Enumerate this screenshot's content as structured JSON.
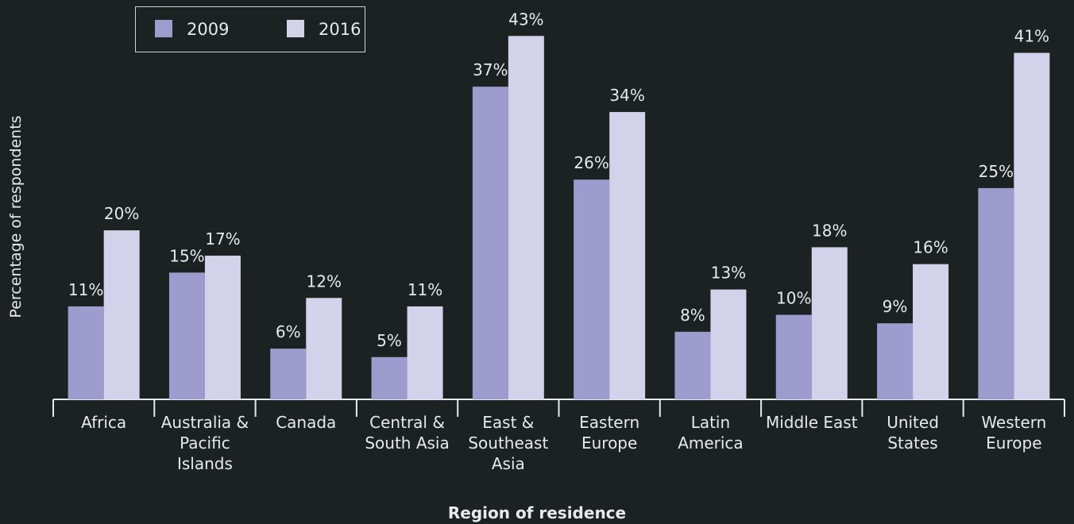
{
  "chart_data": {
    "type": "bar",
    "x_label": "Region of residence",
    "y_label": "Percentage of respondents",
    "categories": [
      "Africa",
      "Australia & Pacific Islands",
      "Canada",
      "Central & South Asia",
      "East & Southeast Asia",
      "Eastern Europe",
      "Latin America",
      "Middle East",
      "United States",
      "Western Europe"
    ],
    "series": [
      {
        "name": "2009",
        "color": "#9e9ccf",
        "values": [
          11,
          15,
          6,
          5,
          37,
          26,
          8,
          10,
          9,
          25
        ],
        "value_labels": [
          "11%",
          "15%",
          "6%",
          "5%",
          "37%",
          "26%",
          "8%",
          "10%",
          "9%",
          "25%"
        ]
      },
      {
        "name": "2016",
        "color": "#d3d2ea",
        "values": [
          20,
          17,
          12,
          11,
          43,
          34,
          13,
          18,
          16,
          41
        ],
        "value_labels": [
          "20%",
          "17%",
          "12%",
          "11%",
          "43%",
          "34%",
          "13%",
          "18%",
          "16%",
          "41%"
        ]
      }
    ],
    "ylim": [
      0,
      45
    ],
    "legend": "top-left"
  }
}
